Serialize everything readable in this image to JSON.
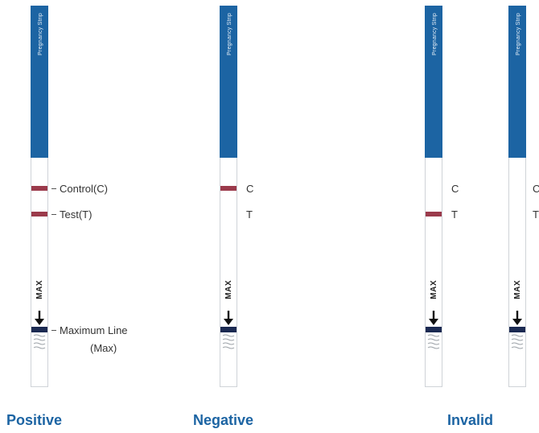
{
  "strip_label": "Pregnancy Strip",
  "max_label": "MAX",
  "colors": {
    "cap": "#1c64a3",
    "band": "#9b3a4b",
    "max_line": "#1b2a52",
    "result_text": "#1c64a3"
  },
  "positive": {
    "control_label": "Control(C)",
    "test_label": "Test(T)",
    "max_line_label": "Maximum Line",
    "max_line_label2": "(Max)",
    "result": "Positive"
  },
  "negative": {
    "c_label": "C",
    "t_label": "T",
    "result": "Negative"
  },
  "invalid": {
    "c_label": "C",
    "t_label": "T",
    "result": "Invalid"
  }
}
